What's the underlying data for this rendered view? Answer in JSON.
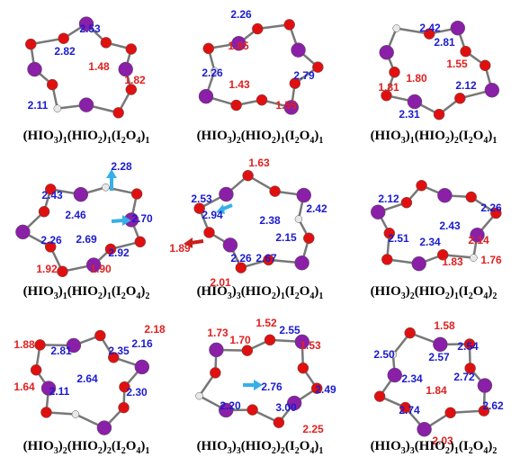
{
  "panels": [
    {
      "caption": "(HIO3)1(HIO2)1(I2O4)1",
      "labels": [
        {
          "text": "2.53",
          "color": "#1b1bd0"
        },
        {
          "text": "2.82",
          "color": "#1b1bd0"
        },
        {
          "text": "1.48",
          "color": "#e02020"
        },
        {
          "text": "1.82",
          "color": "#e02020"
        },
        {
          "text": "2.11",
          "color": "#1b1bd0"
        }
      ]
    },
    {
      "caption": "(HIO3)2(HIO2)1(I2O4)1",
      "labels": [
        {
          "text": "2.26",
          "color": "#1b1bd0"
        },
        {
          "text": "1.85",
          "color": "#e02020"
        },
        {
          "text": "2.26",
          "color": "#1b1bd0"
        },
        {
          "text": "1.43",
          "color": "#e02020"
        },
        {
          "text": "2.79",
          "color": "#1b1bd0"
        },
        {
          "text": "1.55",
          "color": "#e02020"
        }
      ]
    },
    {
      "caption": "(HIO3)1(HIO2)2(I2O4)1",
      "labels": [
        {
          "text": "2.42",
          "color": "#1b1bd0"
        },
        {
          "text": "2.81",
          "color": "#1b1bd0"
        },
        {
          "text": "1.55",
          "color": "#e02020"
        },
        {
          "text": "1.80",
          "color": "#e02020"
        },
        {
          "text": "1.81",
          "color": "#e02020"
        },
        {
          "text": "2.12",
          "color": "#1b1bd0"
        },
        {
          "text": "2.31",
          "color": "#1b1bd0"
        }
      ]
    },
    {
      "caption": "(HIO3)1(HIO2)1(I2O4)2",
      "labels": [
        {
          "text": "2.28",
          "color": "#1b1bd0"
        },
        {
          "text": "2.43",
          "color": "#1b1bd0"
        },
        {
          "text": "2.46",
          "color": "#1b1bd0"
        },
        {
          "text": "2.70",
          "color": "#1b1bd0"
        },
        {
          "text": "2.26",
          "color": "#1b1bd0"
        },
        {
          "text": "2.69",
          "color": "#1b1bd0"
        },
        {
          "text": "2.92",
          "color": "#1b1bd0"
        },
        {
          "text": "1.92",
          "color": "#e02020"
        },
        {
          "text": "1.90",
          "color": "#e02020"
        }
      ]
    },
    {
      "caption": "(HIO3)3(HIO2)1(I2O4)1",
      "labels": [
        {
          "text": "1.63",
          "color": "#e02020"
        },
        {
          "text": "2.53",
          "color": "#1b1bd0"
        },
        {
          "text": "2.94",
          "color": "#1b1bd0"
        },
        {
          "text": "2.38",
          "color": "#1b1bd0"
        },
        {
          "text": "2.42",
          "color": "#1b1bd0"
        },
        {
          "text": "2.15",
          "color": "#1b1bd0"
        },
        {
          "text": "1.89",
          "color": "#e02020"
        },
        {
          "text": "2.26",
          "color": "#1b1bd0"
        },
        {
          "text": "2.67",
          "color": "#1b1bd0"
        },
        {
          "text": "2.01",
          "color": "#e02020"
        }
      ]
    },
    {
      "caption": "(HIO3)2(HIO2)1(I2O4)2",
      "labels": [
        {
          "text": "2.12",
          "color": "#1b1bd0"
        },
        {
          "text": "2.26",
          "color": "#1b1bd0"
        },
        {
          "text": "2.43",
          "color": "#1b1bd0"
        },
        {
          "text": "2.14",
          "color": "#e02020"
        },
        {
          "text": "2.34",
          "color": "#1b1bd0"
        },
        {
          "text": "2.51",
          "color": "#1b1bd0"
        },
        {
          "text": "1.83",
          "color": "#e02020"
        },
        {
          "text": "1.76",
          "color": "#e02020"
        }
      ]
    },
    {
      "caption": "(HIO3)2(HIO2)2(I2O4)1",
      "labels": [
        {
          "text": "1.88",
          "color": "#e02020"
        },
        {
          "text": "2.81",
          "color": "#1b1bd0"
        },
        {
          "text": "2.35",
          "color": "#1b1bd0"
        },
        {
          "text": "2.16",
          "color": "#1b1bd0"
        },
        {
          "text": "2.18",
          "color": "#e02020"
        },
        {
          "text": "2.64",
          "color": "#1b1bd0"
        },
        {
          "text": "1.64",
          "color": "#e02020"
        },
        {
          "text": "2.11",
          "color": "#1b1bd0"
        },
        {
          "text": "2.30",
          "color": "#1b1bd0"
        }
      ]
    },
    {
      "caption": "(HIO3)3(HIO2)2(I2O4)1",
      "labels": [
        {
          "text": "1.73",
          "color": "#e02020"
        },
        {
          "text": "1.52",
          "color": "#e02020"
        },
        {
          "text": "2.55",
          "color": "#1b1bd0"
        },
        {
          "text": "1.70",
          "color": "#e02020"
        },
        {
          "text": "1.53",
          "color": "#e02020"
        },
        {
          "text": "2.76",
          "color": "#1b1bd0"
        },
        {
          "text": "2.49",
          "color": "#1b1bd0"
        },
        {
          "text": "2.20",
          "color": "#1b1bd0"
        },
        {
          "text": "3.00",
          "color": "#1b1bd0"
        },
        {
          "text": "2.25",
          "color": "#e02020"
        }
      ]
    },
    {
      "caption": "(HIO3)3(HIO2)1(I2O4)2",
      "labels": [
        {
          "text": "1.58",
          "color": "#e02020"
        },
        {
          "text": "2.50",
          "color": "#1b1bd0"
        },
        {
          "text": "2.54",
          "color": "#1b1bd0"
        },
        {
          "text": "2.57",
          "color": "#1b1bd0"
        },
        {
          "text": "2.34",
          "color": "#1b1bd0"
        },
        {
          "text": "2.72",
          "color": "#1b1bd0"
        },
        {
          "text": "1.84",
          "color": "#e02020"
        },
        {
          "text": "2.74",
          "color": "#1b1bd0"
        },
        {
          "text": "2.62",
          "color": "#1b1bd0"
        },
        {
          "text": "2.03",
          "color": "#e02020"
        }
      ]
    }
  ]
}
